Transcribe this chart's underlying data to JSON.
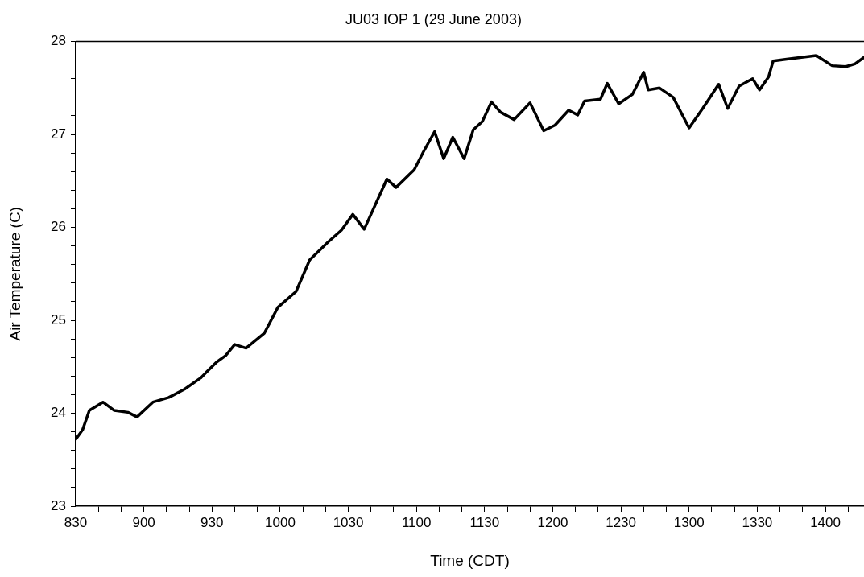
{
  "chart_data": {
    "type": "line",
    "title": "JU03 IOP 1 (29 June 2003)",
    "xlabel": "Time (CDT)",
    "ylabel": "Air Temperature (C)",
    "xlim": [
      "2003-06-29T08:30",
      "2003-06-29T14:17"
    ],
    "xticks": [
      {
        "value": "2003-06-29T08:30",
        "label": "830"
      },
      {
        "value": "2003-06-29T08:40",
        "label": null
      },
      {
        "value": "2003-06-29T08:50",
        "label": null
      },
      {
        "value": "2003-06-29T09:00",
        "label": "900"
      },
      {
        "value": "2003-06-29T09:10",
        "label": null
      },
      {
        "value": "2003-06-29T09:20",
        "label": null
      },
      {
        "value": "2003-06-29T09:30",
        "label": "930"
      },
      {
        "value": "2003-06-29T09:40",
        "label": null
      },
      {
        "value": "2003-06-29T09:50",
        "label": null
      },
      {
        "value": "2003-06-29T10:00",
        "label": "1000"
      },
      {
        "value": "2003-06-29T10:10",
        "label": null
      },
      {
        "value": "2003-06-29T10:20",
        "label": null
      },
      {
        "value": "2003-06-29T10:30",
        "label": "1030"
      },
      {
        "value": "2003-06-29T10:40",
        "label": null
      },
      {
        "value": "2003-06-29T10:50",
        "label": null
      },
      {
        "value": "2003-06-29T11:00",
        "label": "1100"
      },
      {
        "value": "2003-06-29T11:10",
        "label": null
      },
      {
        "value": "2003-06-29T11:20",
        "label": null
      },
      {
        "value": "2003-06-29T11:30",
        "label": "1130"
      },
      {
        "value": "2003-06-29T11:40",
        "label": null
      },
      {
        "value": "2003-06-29T11:50",
        "label": null
      },
      {
        "value": "2003-06-29T12:00",
        "label": "1200"
      },
      {
        "value": "2003-06-29T12:10",
        "label": null
      },
      {
        "value": "2003-06-29T12:20",
        "label": null
      },
      {
        "value": "2003-06-29T12:30",
        "label": "1230"
      },
      {
        "value": "2003-06-29T12:40",
        "label": null
      },
      {
        "value": "2003-06-29T12:50",
        "label": null
      },
      {
        "value": "2003-06-29T13:00",
        "label": "1300"
      },
      {
        "value": "2003-06-29T13:10",
        "label": null
      },
      {
        "value": "2003-06-29T13:20",
        "label": null
      },
      {
        "value": "2003-06-29T13:30",
        "label": "1330"
      },
      {
        "value": "2003-06-29T13:40",
        "label": null
      },
      {
        "value": "2003-06-29T13:50",
        "label": null
      },
      {
        "value": "2003-06-29T14:00",
        "label": "1400"
      },
      {
        "value": "2003-06-29T14:10",
        "label": null
      }
    ],
    "ylim": [
      23,
      28
    ],
    "yticks": [
      23,
      {
        "value": 23.2,
        "label": null
      },
      {
        "value": 23.4,
        "label": null
      },
      {
        "value": 23.6,
        "label": null
      },
      {
        "value": 23.8,
        "label": null
      },
      24,
      {
        "value": 24.2,
        "label": null
      },
      {
        "value": 24.4,
        "label": null
      },
      {
        "value": 24.6,
        "label": null
      },
      {
        "value": 24.8,
        "label": null
      },
      25,
      {
        "value": 25.2,
        "label": null
      },
      {
        "value": 25.4,
        "label": null
      },
      {
        "value": 25.6,
        "label": null
      },
      {
        "value": 25.8,
        "label": null
      },
      26,
      {
        "value": 26.2,
        "label": null
      },
      {
        "value": 26.4,
        "label": null
      },
      {
        "value": 26.6,
        "label": null
      },
      {
        "value": 26.8,
        "label": null
      },
      27,
      {
        "value": 27.2,
        "label": null
      },
      {
        "value": 27.4,
        "label": null
      },
      {
        "value": 27.6,
        "label": null
      },
      {
        "value": 27.8,
        "label": null
      },
      28
    ],
    "grid": false,
    "marker": "none",
    "line_style": "solid",
    "series": [
      {
        "color": "#000000",
        "x": [
          "2003-06-29T08:30",
          "2003-06-29T08:33",
          "2003-06-29T08:36",
          "2003-06-29T08:42",
          "2003-06-29T08:47",
          "2003-06-29T08:53",
          "2003-06-29T08:57",
          "2003-06-29T09:04",
          "2003-06-29T09:11",
          "2003-06-29T09:18",
          "2003-06-29T09:25",
          "2003-06-29T09:32",
          "2003-06-29T09:36",
          "2003-06-29T09:40",
          "2003-06-29T09:45",
          "2003-06-29T09:53",
          "2003-06-29T09:59",
          "2003-06-29T10:07",
          "2003-06-29T10:13",
          "2003-06-29T10:21",
          "2003-06-29T10:27",
          "2003-06-29T10:32",
          "2003-06-29T10:37",
          "2003-06-29T10:47",
          "2003-06-29T10:51",
          "2003-06-29T10:59",
          "2003-06-29T11:03",
          "2003-06-29T11:08",
          "2003-06-29T11:12",
          "2003-06-29T11:16",
          "2003-06-29T11:21",
          "2003-06-29T11:25",
          "2003-06-29T11:29",
          "2003-06-29T11:33",
          "2003-06-29T11:37",
          "2003-06-29T11:43",
          "2003-06-29T11:50",
          "2003-06-29T11:56",
          "2003-06-29T12:01",
          "2003-06-29T12:07",
          "2003-06-29T12:11",
          "2003-06-29T12:14",
          "2003-06-29T12:21",
          "2003-06-29T12:24",
          "2003-06-29T12:29",
          "2003-06-29T12:35",
          "2003-06-29T12:40",
          "2003-06-29T12:42",
          "2003-06-29T12:47",
          "2003-06-29T12:53",
          "2003-06-29T13:00",
          "2003-06-29T13:06",
          "2003-06-29T13:13",
          "2003-06-29T13:17",
          "2003-06-29T13:22",
          "2003-06-29T13:28",
          "2003-06-29T13:31",
          "2003-06-29T13:35",
          "2003-06-29T13:37",
          "2003-06-29T13:43",
          "2003-06-29T13:56",
          "2003-06-29T14:03",
          "2003-06-29T14:09",
          "2003-06-29T14:13",
          "2003-06-29T14:17"
        ],
        "values": [
          23.72,
          23.82,
          24.03,
          24.12,
          24.03,
          24.01,
          23.96,
          24.12,
          24.17,
          24.26,
          24.38,
          24.55,
          24.62,
          24.74,
          24.7,
          24.86,
          25.14,
          25.31,
          25.65,
          25.84,
          25.97,
          26.14,
          25.98,
          26.52,
          26.43,
          26.62,
          26.81,
          27.03,
          26.74,
          26.97,
          26.74,
          27.05,
          27.14,
          27.35,
          27.24,
          27.16,
          27.34,
          27.04,
          27.1,
          27.26,
          27.21,
          27.36,
          27.38,
          27.55,
          27.33,
          27.43,
          27.67,
          27.48,
          27.5,
          27.4,
          27.07,
          27.28,
          27.54,
          27.28,
          27.52,
          27.6,
          27.48,
          27.62,
          27.79,
          27.81,
          27.85,
          27.74,
          27.73,
          27.76,
          27.83
        ]
      }
    ]
  }
}
